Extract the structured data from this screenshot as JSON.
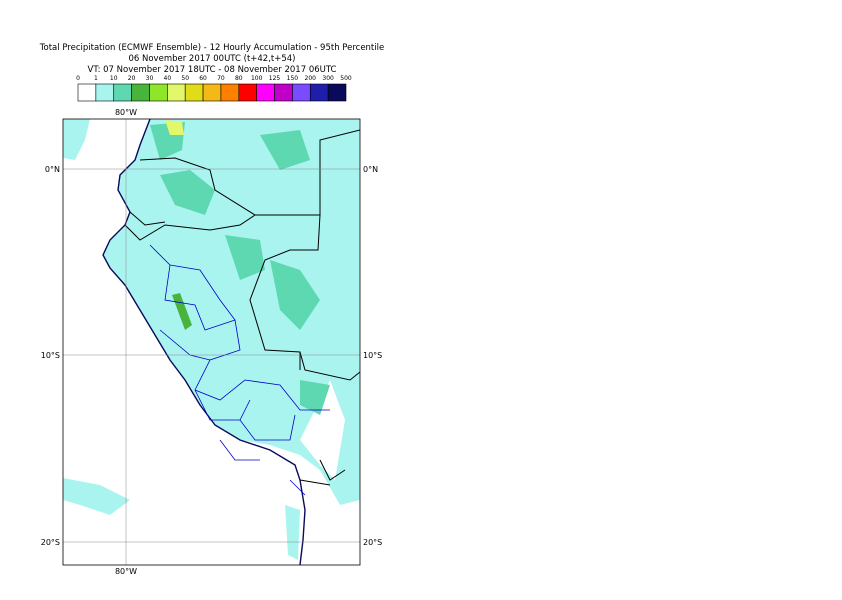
{
  "header": {
    "title": "Total Precipitation (ECMWF Ensemble) - 12 Hourly Accumulation - 95th Percentile",
    "run": "06 November 2017 00UTC (t+42,t+54)",
    "valid": "VT: 07 November 2017 18UTC - 08 November 2017 06UTC"
  },
  "colorbar": {
    "labels": [
      "0",
      "1",
      "10",
      "20",
      "30",
      "40",
      "50",
      "60",
      "70",
      "80",
      "100",
      "125",
      "150",
      "200",
      "300",
      "500"
    ],
    "colors": [
      "#ffffff",
      "#aaf4f0",
      "#5ed8b0",
      "#49b43c",
      "#8ee52a",
      "#e3f76a",
      "#e0dc1a",
      "#f4b817",
      "#ff8000",
      "#ff0000",
      "#ff00ff",
      "#c000c8",
      "#7a4cff",
      "#1e1eaa",
      "#0a0a5a"
    ]
  },
  "map": {
    "lon_labels": [
      "80°W"
    ],
    "lat_labels": [
      "0°N",
      "10°S",
      "20°S"
    ]
  }
}
